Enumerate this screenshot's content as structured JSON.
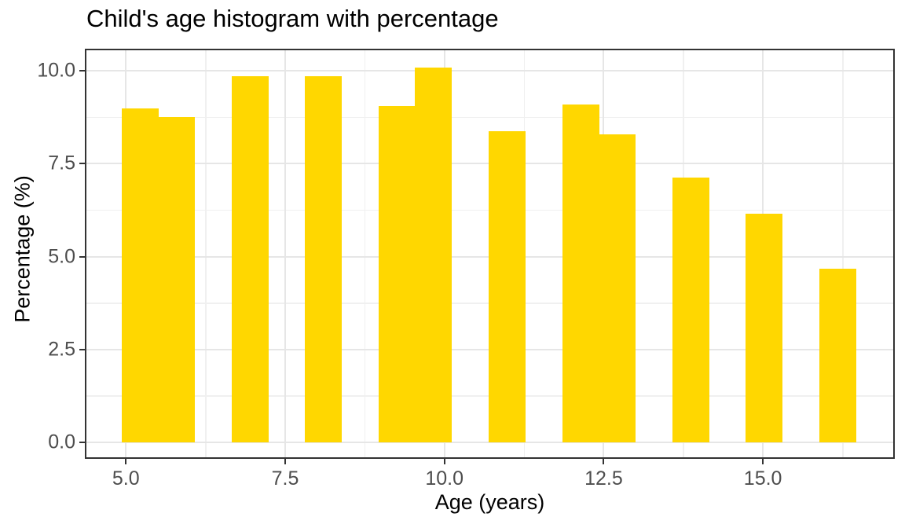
{
  "chart_data": {
    "type": "histogram",
    "title": "Child's age histogram with percentage",
    "xlabel": "Age (years)",
    "ylabel": "Percentage (%)",
    "legend": false,
    "grid": true,
    "x_domain": [
      4.355,
      17.07
    ],
    "y_domain": [
      -0.45,
      10.6
    ],
    "x_major_ticks": [
      5.0,
      7.5,
      10.0,
      12.5,
      15.0
    ],
    "x_tick_labels": [
      "5.0",
      "7.5",
      "10.0",
      "12.5",
      "15.0"
    ],
    "x_minor_ticks": [
      6.25,
      8.75,
      11.25,
      13.75,
      16.25
    ],
    "y_major_ticks": [
      0.0,
      2.5,
      5.0,
      7.5,
      10.0
    ],
    "y_tick_labels": [
      "0.0",
      "2.5",
      "5.0",
      "7.5",
      "10.0"
    ],
    "y_minor_ticks": [
      1.25,
      3.75,
      6.25,
      8.75
    ],
    "bin_edges": [
      4.93,
      5.51,
      6.08,
      6.66,
      7.24,
      7.81,
      8.39,
      8.97,
      9.54,
      10.12,
      10.7,
      11.27,
      11.85,
      12.43,
      13.0,
      13.58,
      14.16,
      14.73,
      15.31,
      15.89,
      16.46
    ],
    "bin_percentages": [
      9.0,
      8.75,
      0,
      9.85,
      0,
      9.85,
      0,
      9.05,
      10.1,
      0,
      8.37,
      0,
      9.1,
      8.3,
      0,
      7.12,
      0,
      6.15,
      0,
      4.68
    ],
    "colors": {
      "bar": "#FFD700",
      "grid_major": "#E6E6E6",
      "grid_minor": "#F0F0F0",
      "panel_border": "#333333",
      "axis_tick": "#333333",
      "tick_label": "#4D4D4D",
      "title": "#000000",
      "background": "#FFFFFF"
    }
  }
}
